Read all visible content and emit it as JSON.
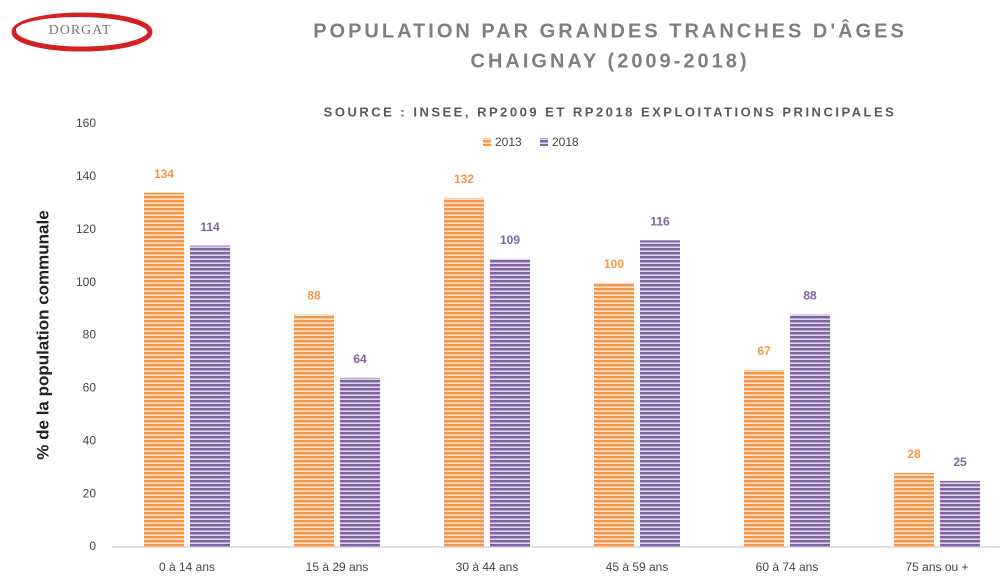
{
  "logo": "DORGAT",
  "chart_data": {
    "type": "bar",
    "title": [
      "POPULATION PAR GRANDES TRANCHES D'ÂGES",
      "CHAIGNAY (2009-2018)"
    ],
    "subtitle": "SOURCE : INSEE, RP2009 ET RP2018 EXPLOITATIONS PRINCIPALES",
    "y_label": "% de la population communale",
    "categories": [
      "0 à 14 ans",
      "15 à 29 ans",
      "30 à 44 ans",
      "45 à 59 ans",
      "60 à 74 ans",
      "75 ans ou +"
    ],
    "series": [
      {
        "name": "2013",
        "color": "#f79646",
        "values": [
          134,
          88,
          132,
          100,
          67,
          28
        ]
      },
      {
        "name": "2018",
        "color": "#8064a2",
        "values": [
          114,
          64,
          109,
          116,
          88,
          25
        ]
      }
    ],
    "ylim": [
      0,
      160
    ],
    "yticks": [
      0,
      20,
      40,
      60,
      80,
      100,
      120,
      140,
      160
    ],
    "grid": false
  }
}
